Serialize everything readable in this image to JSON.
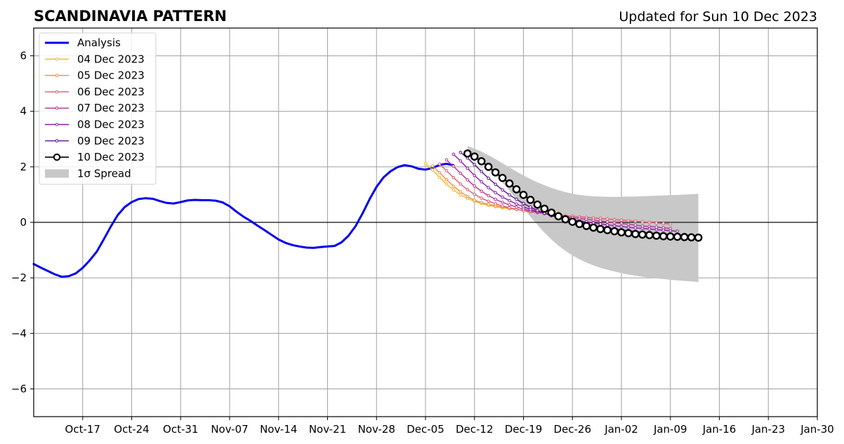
{
  "title": "SCANDINAVIA PATTERN",
  "subtitle": "Updated for Sun 10 Dec 2023",
  "chart_data": {
    "type": "line",
    "title": "SCANDINAVIA PATTERN",
    "subtitle": "Updated for Sun 10 Dec 2023",
    "xlabel": "",
    "ylabel": "",
    "xlim": [
      "2023-10-10",
      "2024-01-30"
    ],
    "ylim": [
      -7,
      7
    ],
    "xticks": [
      {
        "date": "2023-10-17",
        "label": "Oct-17"
      },
      {
        "date": "2023-10-24",
        "label": "Oct-24"
      },
      {
        "date": "2023-10-31",
        "label": "Oct-31"
      },
      {
        "date": "2023-11-07",
        "label": "Nov-07"
      },
      {
        "date": "2023-11-14",
        "label": "Nov-14"
      },
      {
        "date": "2023-11-21",
        "label": "Nov-21"
      },
      {
        "date": "2023-11-28",
        "label": "Nov-28"
      },
      {
        "date": "2023-12-05",
        "label": "Dec-05"
      },
      {
        "date": "2023-12-12",
        "label": "Dec-12"
      },
      {
        "date": "2023-12-19",
        "label": "Dec-19"
      },
      {
        "date": "2023-12-26",
        "label": "Dec-26"
      },
      {
        "date": "2024-01-02",
        "label": "Jan-02"
      },
      {
        "date": "2024-01-09",
        "label": "Jan-09"
      },
      {
        "date": "2024-01-16",
        "label": "Jan-16"
      },
      {
        "date": "2024-01-23",
        "label": "Jan-23"
      },
      {
        "date": "2024-01-30",
        "label": "Jan-30"
      }
    ],
    "yticks": [
      {
        "value": -6,
        "label": "−6"
      },
      {
        "value": -4,
        "label": "−4"
      },
      {
        "value": -2,
        "label": "−2"
      },
      {
        "value": 0,
        "label": "0"
      },
      {
        "value": 2,
        "label": "2"
      },
      {
        "value": 4,
        "label": "4"
      },
      {
        "value": 6,
        "label": "6"
      }
    ],
    "grid": true,
    "legend_position": "top-left",
    "zero_line": true,
    "analysis": {
      "name": "Analysis",
      "color": "#0000ee",
      "start": "2023-10-10",
      "values": [
        -1.5,
        -1.63,
        -1.75,
        -1.87,
        -1.96,
        -1.94,
        -1.84,
        -1.64,
        -1.37,
        -1.06,
        -0.62,
        -0.16,
        0.26,
        0.55,
        0.73,
        0.84,
        0.87,
        0.85,
        0.77,
        0.7,
        0.68,
        0.73,
        0.79,
        0.81,
        0.8,
        0.8,
        0.78,
        0.72,
        0.58,
        0.38,
        0.2,
        0.05,
        -0.12,
        -0.28,
        -0.45,
        -0.62,
        -0.74,
        -0.82,
        -0.87,
        -0.91,
        -0.92,
        -0.89,
        -0.87,
        -0.85,
        -0.72,
        -0.48,
        -0.14,
        0.32,
        0.83,
        1.28,
        1.62,
        1.84,
        1.99,
        2.06,
        2.02,
        1.93,
        1.9,
        1.96,
        2.07,
        2.11,
        2.06
      ]
    },
    "forecasts": [
      {
        "name": "04 Dec 2023",
        "color": "#f7b431",
        "start": "2023-12-05",
        "values": [
          2.12,
          1.89,
          1.62,
          1.38,
          1.17,
          0.99,
          0.86,
          0.76,
          0.68,
          0.61,
          0.56,
          0.52,
          0.49,
          0.46,
          0.44,
          0.42,
          0.39,
          0.37,
          0.35,
          0.33
        ]
      },
      {
        "name": "05 Dec 2023",
        "color": "#f28c3c",
        "start": "2023-12-06",
        "values": [
          2.03,
          1.79,
          1.54,
          1.3,
          1.1,
          0.93,
          0.8,
          0.71,
          0.65,
          0.6,
          0.55,
          0.51,
          0.47,
          0.43,
          0.4,
          0.37,
          0.34,
          0.32,
          0.3
        ]
      },
      {
        "name": "06 Dec 2023",
        "color": "#dc5c6c",
        "start": "2023-12-07",
        "values": [
          2.1,
          1.86,
          1.61,
          1.38,
          1.18,
          1.01,
          0.87,
          0.76,
          0.67,
          0.59,
          0.53,
          0.47,
          0.42,
          0.38,
          0.35,
          0.32,
          0.29,
          0.27,
          0.24,
          0.22,
          0.2,
          0.18,
          0.16,
          0.14,
          0.12,
          0.1,
          0.08,
          0.06,
          0.04,
          0.02,
          0.0,
          -0.02,
          -0.04,
          -0.06
        ]
      },
      {
        "name": "07 Dec 2023",
        "color": "#b5318c",
        "start": "2023-12-08",
        "values": [
          2.25,
          2.02,
          1.77,
          1.53,
          1.31,
          1.12,
          0.96,
          0.83,
          0.72,
          0.63,
          0.55,
          0.48,
          0.42,
          0.37,
          0.32,
          0.28,
          0.24,
          0.2,
          0.17,
          0.14,
          0.11,
          0.08,
          0.05,
          0.02,
          -0.01,
          -0.04,
          -0.07,
          -0.1,
          -0.13,
          -0.15,
          -0.17,
          -0.2,
          -0.22
        ]
      },
      {
        "name": "08 Dec 2023",
        "color": "#8f18a8",
        "start": "2023-12-09",
        "values": [
          2.45,
          2.21,
          1.95,
          1.69,
          1.46,
          1.25,
          1.07,
          0.91,
          0.78,
          0.66,
          0.56,
          0.47,
          0.39,
          0.32,
          0.26,
          0.2,
          0.15,
          0.1,
          0.06,
          0.02,
          -0.02,
          -0.06,
          -0.09,
          -0.12,
          -0.15,
          -0.18,
          -0.2,
          -0.22,
          -0.24,
          -0.26,
          -0.28,
          -0.3,
          -0.32
        ]
      },
      {
        "name": "09 Dec 2023",
        "color": "#5a108c",
        "start": "2023-12-10",
        "values": [
          2.52,
          2.32,
          2.08,
          1.83,
          1.59,
          1.37,
          1.17,
          0.99,
          0.83,
          0.68,
          0.55,
          0.43,
          0.33,
          0.24,
          0.16,
          0.09,
          0.03,
          -0.03,
          -0.08,
          -0.13,
          -0.17,
          -0.21,
          -0.24,
          -0.27,
          -0.3,
          -0.33,
          -0.36,
          -0.38,
          -0.4,
          -0.42,
          -0.44,
          -0.46,
          -0.47
        ]
      },
      {
        "name": "10 Dec 2023",
        "color": "#000000",
        "start": "2023-12-11",
        "values": [
          2.48,
          2.37,
          2.2,
          2.0,
          1.8,
          1.6,
          1.4,
          1.19,
          0.99,
          0.81,
          0.64,
          0.49,
          0.35,
          0.22,
          0.11,
          0.02,
          -0.06,
          -0.13,
          -0.19,
          -0.24,
          -0.28,
          -0.32,
          -0.36,
          -0.39,
          -0.42,
          -0.44,
          -0.46,
          -0.48,
          -0.5,
          -0.51,
          -0.52,
          -0.53,
          -0.54,
          -0.55
        ]
      }
    ],
    "spread": {
      "name": "1σ Spread",
      "color": "#c8c8c8",
      "start": "2023-12-11",
      "upper": [
        2.75,
        2.66,
        2.55,
        2.42,
        2.28,
        2.13,
        1.98,
        1.83,
        1.69,
        1.56,
        1.44,
        1.34,
        1.24,
        1.16,
        1.09,
        1.03,
        0.99,
        0.96,
        0.94,
        0.93,
        0.92,
        0.92,
        0.92,
        0.93,
        0.93,
        0.94,
        0.95,
        0.96,
        0.97,
        0.98,
        0.99,
        1.0,
        1.01,
        1.03
      ],
      "lower": [
        2.6,
        2.43,
        2.22,
        1.98,
        1.72,
        1.44,
        1.14,
        0.83,
        0.51,
        0.2,
        -0.09,
        -0.37,
        -0.62,
        -0.84,
        -1.03,
        -1.19,
        -1.33,
        -1.45,
        -1.55,
        -1.64,
        -1.71,
        -1.77,
        -1.83,
        -1.88,
        -1.92,
        -1.96,
        -1.99,
        -2.02,
        -2.04,
        -2.07,
        -2.09,
        -2.11,
        -2.13,
        -2.15
      ]
    }
  }
}
